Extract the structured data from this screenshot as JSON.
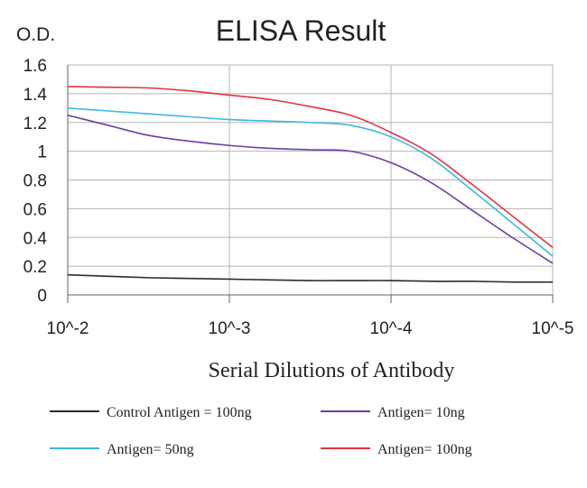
{
  "chart_data": {
    "type": "line",
    "title": "ELISA Result",
    "ylabel": "O.D.",
    "xlabel": "Serial Dilutions of Antibody",
    "categories": [
      "10^-2",
      "10^-3",
      "10^-4",
      "10^-5"
    ],
    "x": [
      0,
      0.25,
      0.5,
      0.75,
      1,
      1.25,
      1.5,
      1.75,
      2,
      2.25,
      2.5,
      2.75,
      3
    ],
    "ylim": [
      0,
      1.6
    ],
    "yticks": [
      "0",
      "0.2",
      "0.4",
      "0.6",
      "0.8",
      "1",
      "1.2",
      "1.4",
      "1.6"
    ],
    "grid": true,
    "legend_position": "bottom",
    "series": [
      {
        "name": "Control Antigen = 100ng",
        "color": "#2b2b2b",
        "values": [
          0.14,
          0.13,
          0.12,
          0.115,
          0.11,
          0.105,
          0.1,
          0.1,
          0.1,
          0.095,
          0.095,
          0.09,
          0.09
        ]
      },
      {
        "name": "Antigen= 10ng",
        "color": "#6a3fa0",
        "values": [
          1.25,
          1.18,
          1.11,
          1.07,
          1.04,
          1.02,
          1.01,
          1.0,
          0.92,
          0.78,
          0.59,
          0.4,
          0.22
        ]
      },
      {
        "name": "Antigen= 50ng",
        "color": "#3cb8e0",
        "values": [
          1.3,
          1.28,
          1.26,
          1.24,
          1.22,
          1.21,
          1.2,
          1.18,
          1.1,
          0.95,
          0.73,
          0.5,
          0.27
        ]
      },
      {
        "name": "Antigen= 100ng",
        "color": "#e0353f",
        "values": [
          1.45,
          1.445,
          1.44,
          1.42,
          1.39,
          1.36,
          1.31,
          1.25,
          1.13,
          0.98,
          0.77,
          0.55,
          0.33
        ]
      }
    ]
  }
}
